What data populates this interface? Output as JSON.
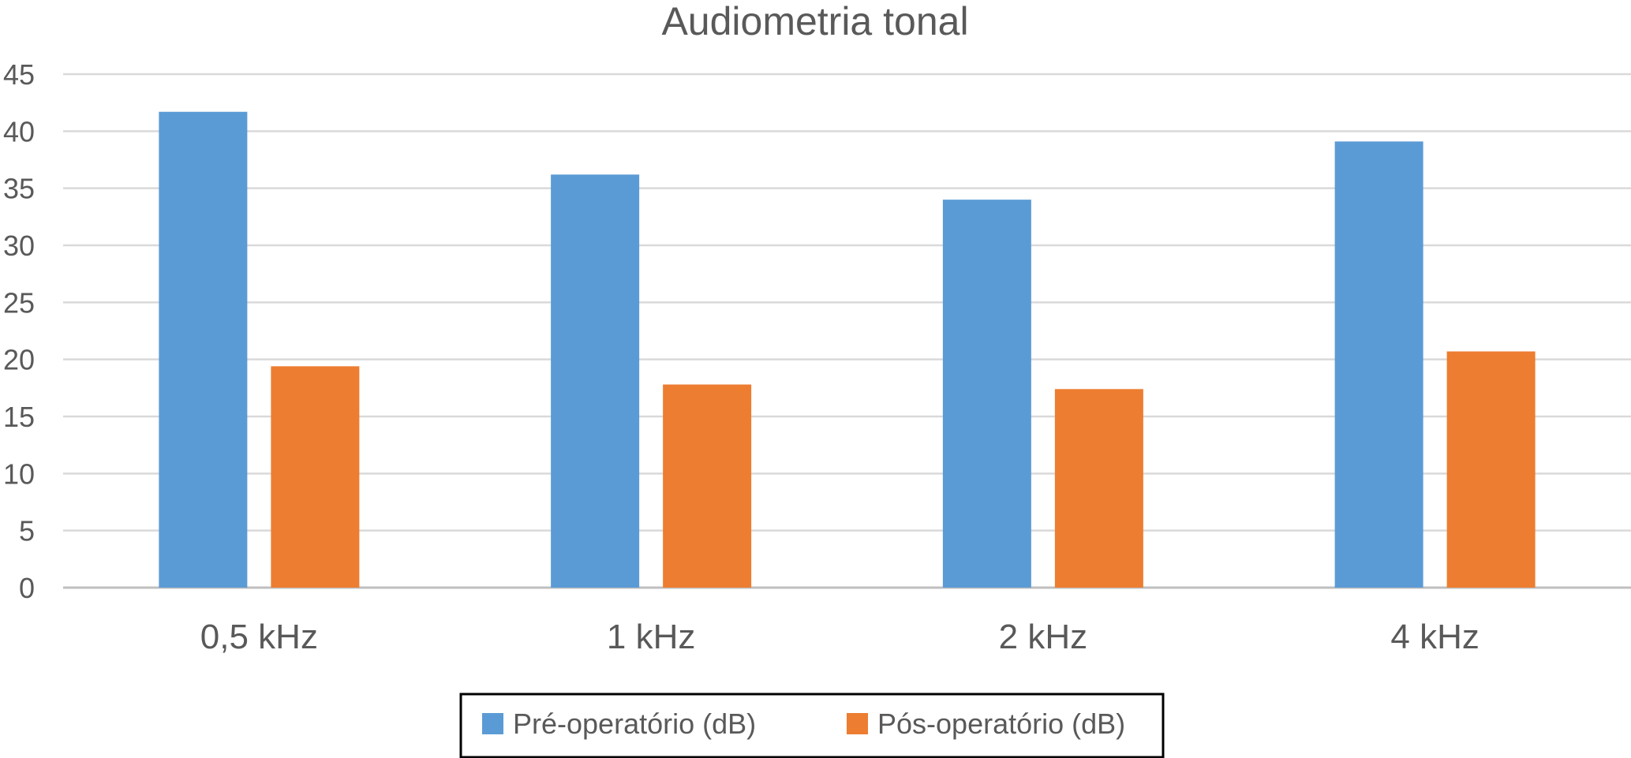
{
  "chart_data": {
    "type": "bar",
    "title": "Audiometria tonal",
    "categories": [
      "0,5 kHz",
      "1 kHz",
      "2 kHz",
      "4 kHz"
    ],
    "series": [
      {
        "name": "Pré-operatório (dB)",
        "color": "#5B9BD5",
        "values": [
          41.7,
          36.2,
          34.0,
          39.1
        ]
      },
      {
        "name": "Pós-operatório (dB)",
        "color": "#ED7D31",
        "values": [
          19.4,
          17.8,
          17.4,
          20.7
        ]
      }
    ],
    "ylim": [
      0,
      45
    ],
    "yticks": [
      0,
      5,
      10,
      15,
      20,
      25,
      30,
      35,
      40,
      45
    ],
    "grid": true,
    "legend_position": "bottom",
    "xlabel": "",
    "ylabel": ""
  }
}
